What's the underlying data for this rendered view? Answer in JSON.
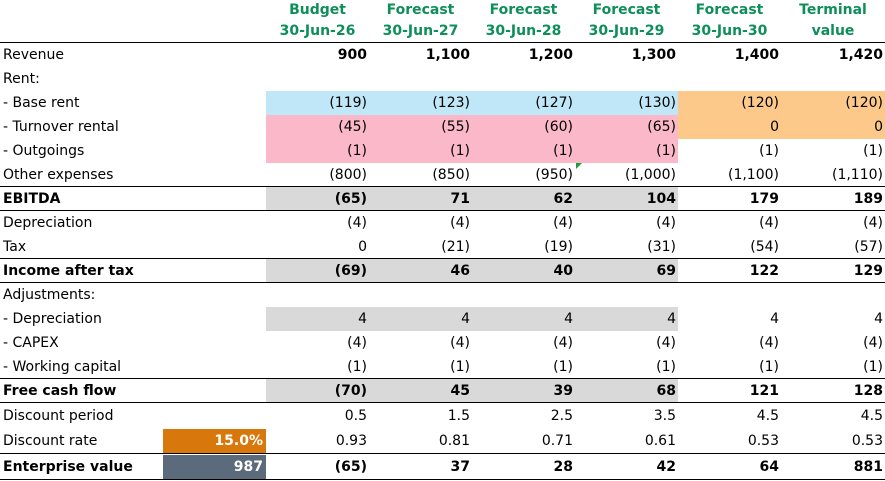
{
  "header": {
    "line1": [
      "Budget",
      "Forecast",
      "Forecast",
      "Forecast",
      "Forecast",
      "Terminal"
    ],
    "line2": [
      "30-Jun-26",
      "30-Jun-27",
      "30-Jun-28",
      "30-Jun-29",
      "30-Jun-30",
      "value"
    ]
  },
  "rows": {
    "revenue": {
      "label": "Revenue",
      "values": [
        "900",
        "1,100",
        "1,200",
        "1,300",
        "1,400",
        "1,420"
      ]
    },
    "rent": {
      "label": "Rent:"
    },
    "base_rent": {
      "label": "- Base rent",
      "values": [
        "(119)",
        "(123)",
        "(127)",
        "(130)",
        "(120)",
        "(120)"
      ]
    },
    "turnover_rental": {
      "label": "- Turnover rental",
      "values": [
        "(45)",
        "(55)",
        "(60)",
        "(65)",
        "0",
        "0"
      ]
    },
    "outgoings": {
      "label": "- Outgoings",
      "values": [
        "(1)",
        "(1)",
        "(1)",
        "(1)",
        "(1)",
        "(1)"
      ]
    },
    "other_expenses": {
      "label": "Other expenses",
      "values": [
        "(800)",
        "(850)",
        "(950)",
        "(1,000)",
        "(1,100)",
        "(1,110)"
      ]
    },
    "ebitda": {
      "label": "EBITDA",
      "values": [
        "(65)",
        "71",
        "62",
        "104",
        "179",
        "189"
      ]
    },
    "depreciation": {
      "label": "Depreciation",
      "values": [
        "(4)",
        "(4)",
        "(4)",
        "(4)",
        "(4)",
        "(4)"
      ]
    },
    "tax": {
      "label": "Tax",
      "values": [
        "0",
        "(21)",
        "(19)",
        "(31)",
        "(54)",
        "(57)"
      ]
    },
    "income_after_tax": {
      "label": "Income after tax",
      "values": [
        "(69)",
        "46",
        "40",
        "69",
        "122",
        "129"
      ]
    },
    "adjustments": {
      "label": "Adjustments:"
    },
    "adj_depreciation": {
      "label": "- Depreciation",
      "values": [
        "4",
        "4",
        "4",
        "4",
        "4",
        "4"
      ]
    },
    "capex": {
      "label": "- CAPEX",
      "values": [
        "(4)",
        "(4)",
        "(4)",
        "(4)",
        "(4)",
        "(4)"
      ]
    },
    "working_capital": {
      "label": "- Working capital",
      "values": [
        "(1)",
        "(1)",
        "(1)",
        "(1)",
        "(1)",
        "(1)"
      ]
    },
    "free_cash_flow": {
      "label": "Free cash flow",
      "values": [
        "(70)",
        "45",
        "39",
        "68",
        "121",
        "128"
      ]
    },
    "discount_period": {
      "label": "Discount period",
      "values": [
        "0.5",
        "1.5",
        "2.5",
        "3.5",
        "4.5",
        "4.5"
      ]
    },
    "discount_rate": {
      "label": "Discount rate",
      "input": "15.0%",
      "values": [
        "0.93",
        "0.81",
        "0.71",
        "0.61",
        "0.53",
        "0.53"
      ]
    },
    "enterprise_value": {
      "label": "Enterprise value",
      "input": "987",
      "values": [
        "(65)",
        "37",
        "28",
        "42",
        "64",
        "881"
      ]
    }
  },
  "colors": {
    "header_text": "#0e8f5a",
    "base_rent_fill": "#bfe7f7",
    "turnover_fill": "#fbb8c9",
    "terminal_rent_fill": "#fdc98b",
    "subtotal_fill": "#d9d9d9",
    "discount_rate_fill": "#d8770b",
    "enterprise_value_fill": "#5b6b7c"
  }
}
